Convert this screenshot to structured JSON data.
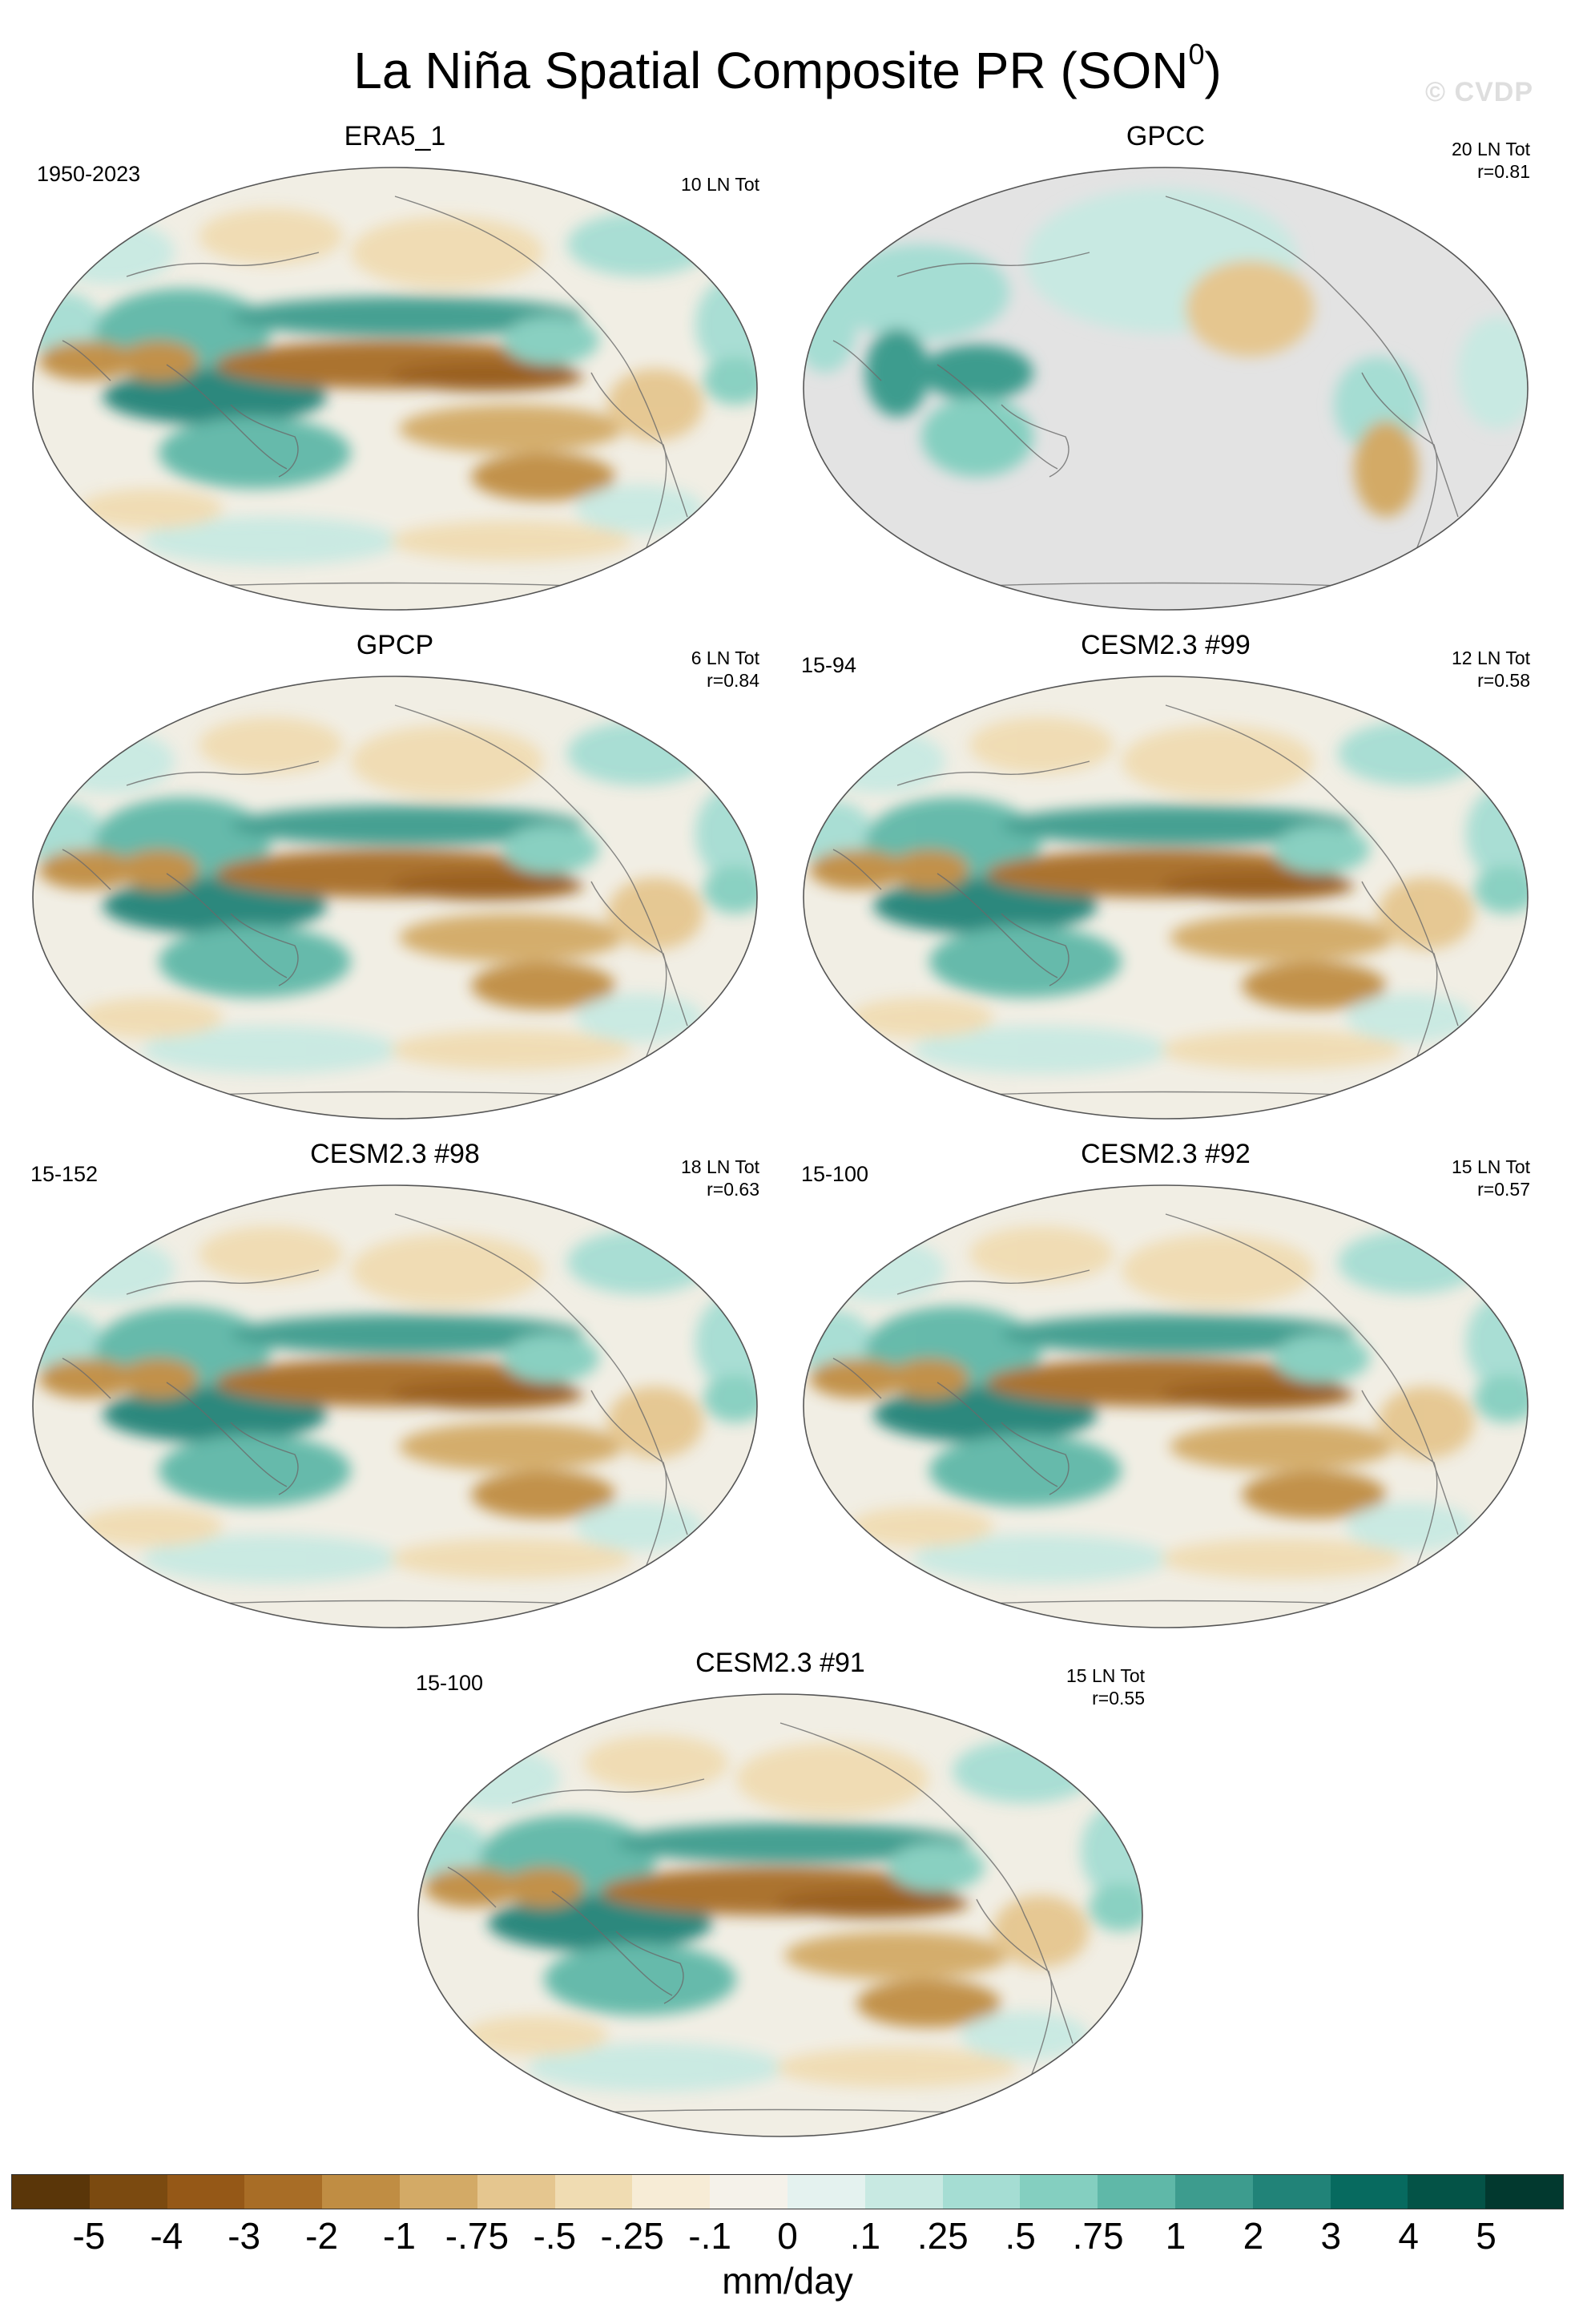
{
  "figure": {
    "title_main": "La Niña Spatial Composite PR (SON",
    "title_sup": "0",
    "title_end": ")",
    "watermark": "© CVDP"
  },
  "panels": [
    {
      "title": "ERA5_1",
      "period": "1950-2023",
      "count": "10 LN Tot",
      "corr": "",
      "land_only": false
    },
    {
      "title": "GPCC",
      "period": "",
      "count": "20 LN Tot",
      "corr": "r=0.81",
      "land_only": true
    },
    {
      "title": "GPCP",
      "period": "",
      "count": "6 LN Tot",
      "corr": "r=0.84",
      "land_only": false
    },
    {
      "title": "CESM2.3 #99",
      "period": "15-94",
      "count": "12 LN Tot",
      "corr": "r=0.58",
      "land_only": false
    },
    {
      "title": "CESM2.3 #98",
      "period": "15-152",
      "count": "18 LN Tot",
      "corr": "r=0.63",
      "land_only": false
    },
    {
      "title": "CESM2.3 #92",
      "period": "15-100",
      "count": "15 LN Tot",
      "corr": "r=0.57",
      "land_only": false
    },
    {
      "title": "CESM2.3 #91",
      "period": "15-100",
      "count": "15 LN Tot",
      "corr": "r=0.55",
      "land_only": false
    }
  ],
  "colorbar": {
    "colors": [
      "#5a3609",
      "#7b4a10",
      "#955817",
      "#a86d26",
      "#c08d43",
      "#d3aa66",
      "#e5c68f",
      "#f0dcb2",
      "#f7ecd6",
      "#f5f2ea",
      "#e4f2ef",
      "#c8e9e2",
      "#a5ddd3",
      "#84cfc0",
      "#5fb8a8",
      "#3d9c8e",
      "#218378",
      "#076a5f",
      "#045347",
      "#02392f"
    ],
    "ticks": [
      "-5",
      "-4",
      "-3",
      "-2",
      "-1",
      "-.75",
      "-.5",
      "-.25",
      "-.1",
      "0",
      ".1",
      ".25",
      ".5",
      ".75",
      "1",
      "2",
      "3",
      "4",
      "5"
    ],
    "units": "mm/day"
  }
}
